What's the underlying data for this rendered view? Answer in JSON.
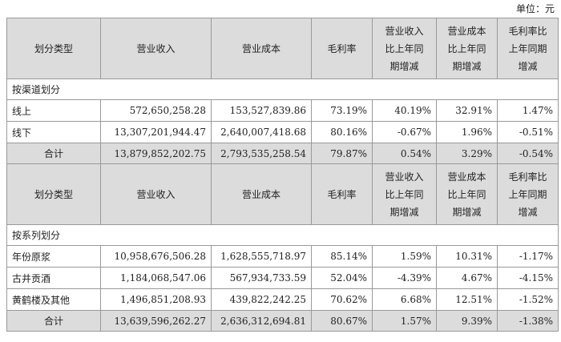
{
  "unit_label": "单位：元",
  "headers": [
    "划分类型",
    "营业收入",
    "营业成本",
    "毛利率",
    "营业收入比上年同期增减",
    "营业成本比上年同期增减",
    "毛利率比上年同期增减"
  ],
  "header_lines": [
    [
      "划分类型"
    ],
    [
      "营业收入"
    ],
    [
      "营业成本"
    ],
    [
      "毛利率"
    ],
    [
      "营业收入",
      "比上年同",
      "期增减"
    ],
    [
      "营业成本",
      "比上年同",
      "期增减"
    ],
    [
      "毛利率比",
      "上年同期",
      "增减"
    ]
  ],
  "sections": [
    {
      "title": "按渠道划分",
      "rows": [
        {
          "label": "线上",
          "revenue": "572,650,258.28",
          "cost": "153,527,839.86",
          "margin": "73.19%",
          "rev_change": "40.19%",
          "cost_change": "32.91%",
          "margin_change": "1.47%"
        },
        {
          "label": "线下",
          "revenue": "13,307,201,944.47",
          "cost": "2,640,007,418.68",
          "margin": "80.16%",
          "rev_change": "-0.67%",
          "cost_change": "1.96%",
          "margin_change": "-0.51%"
        }
      ],
      "total": {
        "label": "合计",
        "revenue": "13,879,852,202.75",
        "cost": "2,793,535,258.54",
        "margin": "79.87%",
        "rev_change": "0.54%",
        "cost_change": "3.29%",
        "margin_change": "-0.54%"
      }
    },
    {
      "title": "按系列划分",
      "rows": [
        {
          "label": "年份原浆",
          "revenue": "10,958,676,506.28",
          "cost": "1,628,555,718.97",
          "margin": "85.14%",
          "rev_change": "1.59%",
          "cost_change": "10.31%",
          "margin_change": "-1.17%"
        },
        {
          "label": "古井贡酒",
          "revenue": "1,184,068,547.06",
          "cost": "567,934,733.59",
          "margin": "52.04%",
          "rev_change": "-4.39%",
          "cost_change": "4.67%",
          "margin_change": "-4.15%"
        },
        {
          "label": "黄鹤楼及其他",
          "revenue": "1,496,851,208.93",
          "cost": "439,822,242.25",
          "margin": "70.62%",
          "rev_change": "6.68%",
          "cost_change": "12.51%",
          "margin_change": "-1.52%"
        }
      ],
      "total": {
        "label": "合计",
        "revenue": "13,639,596,262.27",
        "cost": "2,636,312,694.81",
        "margin": "80.67%",
        "rev_change": "1.57%",
        "cost_change": "9.39%",
        "margin_change": "-1.38%"
      }
    }
  ]
}
